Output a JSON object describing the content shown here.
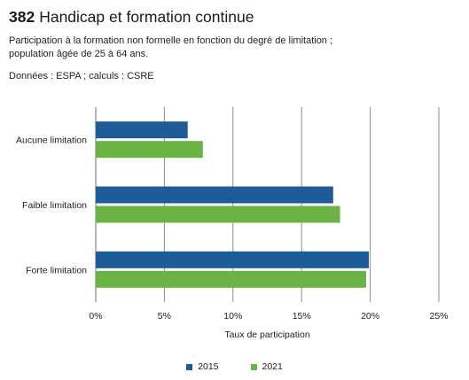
{
  "figure": {
    "number": "382",
    "title": "Handicap et formation continue",
    "subtitle_line1": "Participation à la formation non formelle en fonction du degré de limitation ;",
    "subtitle_line2": "population âgée de 25 à 64 ans.",
    "source": "Données : ESPA ; calculs : CSRE"
  },
  "chart_data": {
    "type": "bar",
    "orientation": "horizontal",
    "categories": [
      "Aucune limitation",
      "Faible limitation",
      "Forte limitation"
    ],
    "series": [
      {
        "name": "2015",
        "color": "#1d5b99",
        "values": [
          6.7,
          17.3,
          19.9
        ]
      },
      {
        "name": "2021",
        "color": "#6ab344",
        "values": [
          7.8,
          17.8,
          19.7
        ]
      }
    ],
    "xlabel": "Taux de participation",
    "ylabel": "",
    "xlim": [
      0,
      25
    ],
    "xticks": [
      0,
      5,
      10,
      15,
      20,
      25
    ],
    "xtick_labels": [
      "0%",
      "5%",
      "10%",
      "15%",
      "20%",
      "25%"
    ],
    "grid": "vertical",
    "legend_position": "bottom"
  }
}
